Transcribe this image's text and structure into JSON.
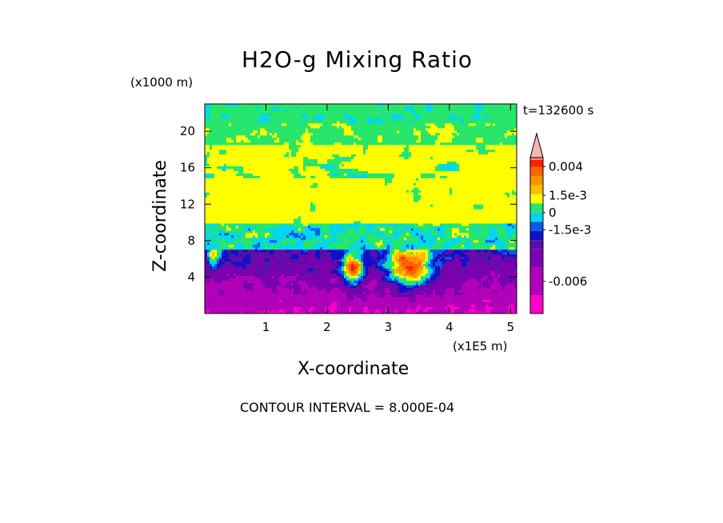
{
  "chart_data": {
    "type": "heatmap",
    "title": "H2O-g Mixing Ratio",
    "xlabel": "X-coordinate",
    "ylabel": "Z-coordinate",
    "x_unit": "(x1E5 m)",
    "y_unit": "(x1000 m)",
    "time_label": "t=132600 s",
    "contour_label": "CONTOUR INTERVAL = 8.000E-04",
    "xlim": [
      0,
      5.1
    ],
    "ylim": [
      0,
      23
    ],
    "x_ticks": [
      "1",
      "2",
      "3",
      "4",
      "5"
    ],
    "x_tick_values": [
      1,
      2,
      3,
      4,
      5
    ],
    "y_ticks": [
      "4",
      "8",
      "12",
      "16",
      "20"
    ],
    "y_tick_values": [
      4,
      8,
      12,
      16,
      20
    ],
    "colorbar": {
      "labels": [
        "0.004",
        "1.5e-3",
        "0",
        "-1.5e-3",
        "-0.006"
      ],
      "label_values": [
        0.004,
        0.0015,
        0,
        -0.0015,
        -0.006
      ],
      "vmin": -0.0088,
      "vmax": 0.0048,
      "colors": [
        "#ff00c8",
        "#b000b8",
        "#7a00b0",
        "#5a10a8",
        "#1010c8",
        "#0a5ce0",
        "#00d6f0",
        "#27e66b",
        "#ffff00",
        "#ffc000",
        "#ff9000",
        "#ff6000",
        "#ff2000",
        "#ff8a8a",
        "#f6b8b0"
      ],
      "bounds": [
        -0.0088,
        -0.0072,
        -0.0048,
        -0.0032,
        -0.0024,
        -0.0016,
        -0.0008,
        0,
        0.0008,
        0.0016,
        0.0024,
        0.0032,
        0.004,
        0.0046,
        0.0048
      ]
    },
    "regions": [
      {
        "z_range": [
          18.5,
          23
        ],
        "dominant": "0 to 8E-4 (green) with yellow patches"
      },
      {
        "z_range": [
          10,
          18.5
        ],
        "dominant": "8E-4 to 1.6E-3 (yellow)"
      },
      {
        "z_range": [
          7,
          10
        ],
        "dominant": "mixed green/cyan/blue"
      },
      {
        "z_range": [
          0,
          7
        ],
        "dominant": "negative values (blue/purple) with positive orange cores near x=2.4 and x=3.4"
      }
    ]
  }
}
